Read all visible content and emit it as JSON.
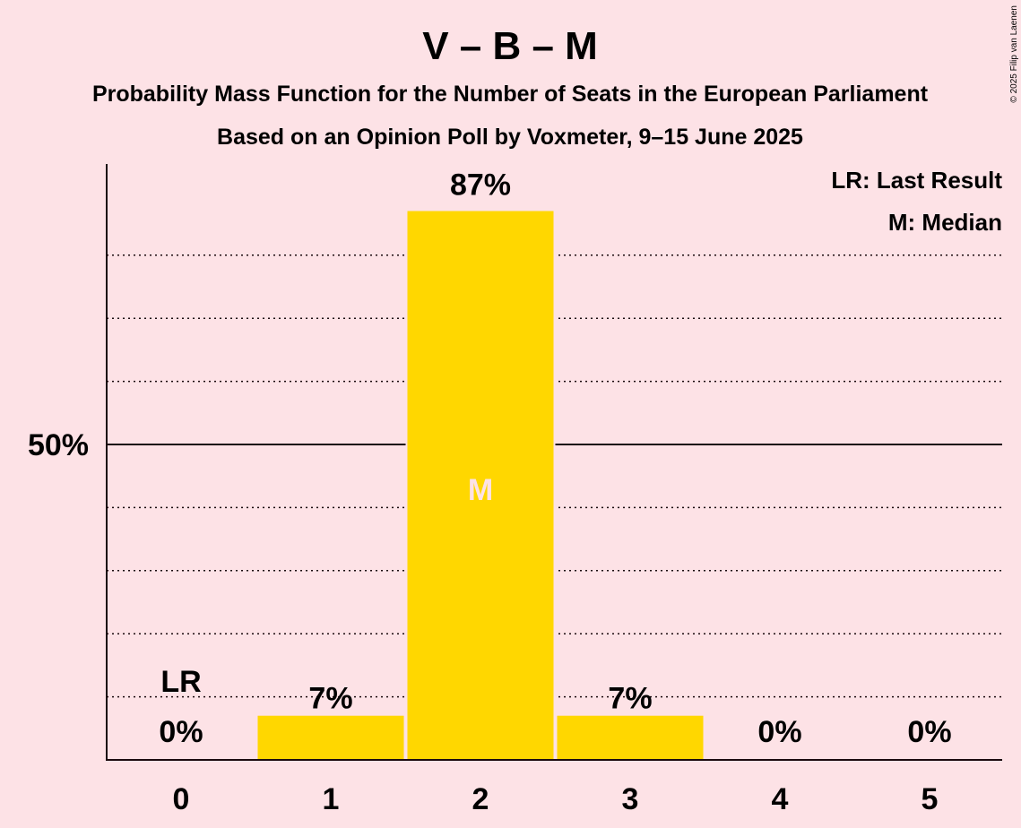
{
  "title": "V – B – M",
  "subtitle1": "Probability Mass Function for the Number of Seats in the European Parliament",
  "subtitle2": "Based on an Opinion Poll by Voxmeter, 9–15 June 2025",
  "copyright": "© 2025 Filip van Laenen",
  "legend": {
    "lr": "LR: Last Result",
    "m": "M: Median"
  },
  "colors": {
    "background": "#fde2e6",
    "bar": "#ffd700",
    "text": "#1a0a0e",
    "median_marker": "#fde2e6"
  },
  "chart_data": {
    "type": "bar",
    "categories": [
      "0",
      "1",
      "2",
      "3",
      "4",
      "5"
    ],
    "values": [
      0,
      7,
      87,
      7,
      0,
      0
    ],
    "value_labels": [
      "0%",
      "7%",
      "87%",
      "7%",
      "0%",
      "0%"
    ],
    "y_tick_label": "50%",
    "y_tick_value": 50,
    "ylim": [
      0,
      94
    ],
    "grid_step": 10,
    "last_result_label": "LR",
    "last_result_category": "0",
    "median_label": "M",
    "median_category": "2",
    "legend_position": "top-right"
  }
}
